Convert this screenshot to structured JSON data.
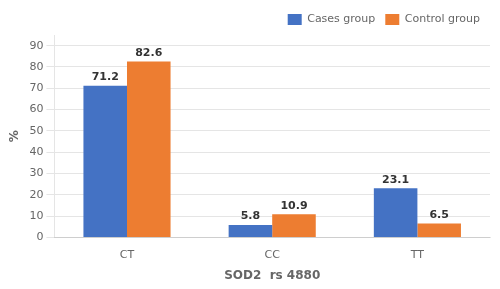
{
  "chart_data": {
    "type": "bar",
    "categories": [
      "CT",
      "CC",
      "TT"
    ],
    "series": [
      {
        "name": "Cases group",
        "color": "#4472C4",
        "values": [
          71.2,
          5.8,
          23.1
        ]
      },
      {
        "name": "Control group",
        "color": "#ED7D31",
        "values": [
          82.6,
          10.9,
          6.5
        ]
      }
    ],
    "xlabel": "SOD2  rs 4880",
    "ylabel": "%",
    "ylim": [
      0,
      95
    ],
    "yticks": [
      0,
      10,
      20,
      30,
      40,
      50,
      60,
      70,
      80,
      90
    ],
    "grid": true,
    "legend": "upper right",
    "data_labels": true
  }
}
